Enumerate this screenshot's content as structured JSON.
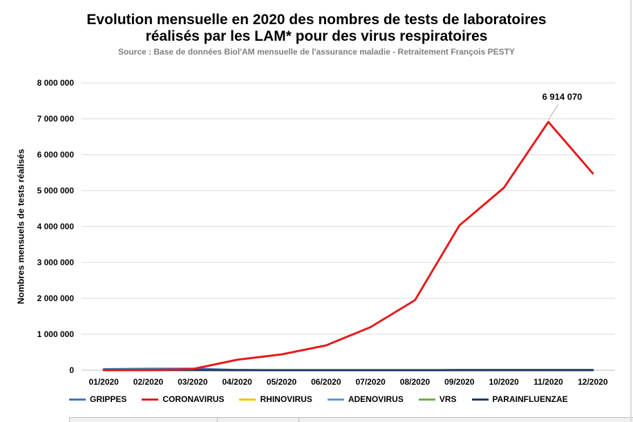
{
  "chart_data": {
    "type": "line",
    "title_line1": "Evolution mensuelle en 2020 des nombres de tests de laboratoires",
    "title_line2": "réalisés par les LAM* pour des virus respiratoires",
    "subtitle": "Source : Base de données Biol'AM mensuelle de l'assurance maladie - Retraitement François PESTY",
    "xlabel": "",
    "ylabel": "Nombres mensuels de tests réalisés",
    "categories": [
      "01/2020",
      "02/2020",
      "03/2020",
      "04/2020",
      "05/2020",
      "06/2020",
      "07/2020",
      "08/2020",
      "09/2020",
      "10/2020",
      "11/2020",
      "12/2020"
    ],
    "ylim": [
      0,
      8000000
    ],
    "yticks": [
      0,
      1000000,
      2000000,
      3000000,
      4000000,
      5000000,
      6000000,
      7000000,
      8000000
    ],
    "ytick_labels": [
      "0",
      "1 000 000",
      "2 000 000",
      "3 000 000",
      "4 000 000",
      "5 000 000",
      "6 000 000",
      "7 000 000",
      "8 000 000"
    ],
    "grid": true,
    "legend_position": "bottom",
    "series": [
      {
        "name": "GRIPPES",
        "color": "#4472c4",
        "values": [
          28000,
          40000,
          42000,
          5000,
          2000,
          1500,
          1500,
          1500,
          2000,
          2500,
          2500,
          3000
        ]
      },
      {
        "name": "CORONAVIRUS",
        "color": "#e31a1c",
        "values": [
          0,
          0,
          30000,
          290000,
          440000,
          690000,
          1200000,
          1950000,
          4030000,
          5080000,
          6914070,
          5480000
        ]
      },
      {
        "name": "RHINOVIRUS",
        "color": "#ffc000",
        "values": [
          3000,
          3000,
          3000,
          1000,
          500,
          500,
          800,
          800,
          2000,
          2500,
          2000,
          2000
        ]
      },
      {
        "name": "ADENOVIRUS",
        "color": "#5b9bd5",
        "values": [
          3000,
          3000,
          3000,
          1000,
          500,
          500,
          800,
          800,
          2000,
          2500,
          2000,
          2000
        ]
      },
      {
        "name": "VRS",
        "color": "#70ad47",
        "values": [
          10000,
          12000,
          10000,
          1000,
          500,
          500,
          500,
          500,
          1500,
          3000,
          4000,
          5000
        ]
      },
      {
        "name": "PARAINFLUENZAE",
        "color": "#1f3864",
        "values": [
          3000,
          3000,
          3000,
          1000,
          500,
          500,
          800,
          800,
          2000,
          2500,
          2000,
          2000
        ]
      }
    ],
    "annotations": [
      {
        "series": "CORONAVIRUS",
        "category": "11/2020",
        "text": "6 914 070"
      }
    ]
  }
}
